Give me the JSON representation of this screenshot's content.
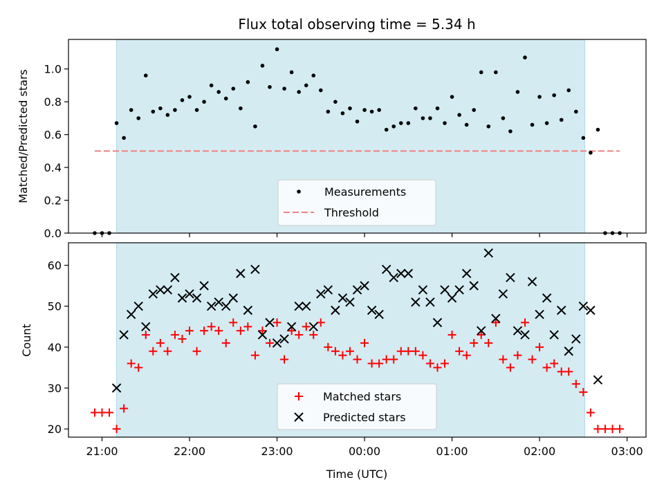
{
  "chart_data": {
    "title": "Flux total observing time = 5.34 h",
    "xlabel": "Time (UTC)",
    "x_ticks": [
      "21:00",
      "22:00",
      "23:00",
      "00:00",
      "01:00",
      "02:00",
      "03:00"
    ],
    "x_range": [
      "20:37",
      "03:13"
    ],
    "shaded_interval": [
      "21:10",
      "02:31"
    ],
    "colors": {
      "shade": "#d4ebf2",
      "matched": "#ff0000",
      "predicted": "#000000",
      "threshold": "#f08080",
      "measurement": "#000000"
    },
    "panels": [
      {
        "type": "scatter",
        "ylabel": "Matched/Predicted stars",
        "ylim": [
          0,
          1.18
        ],
        "y_ticks": [
          "0.0",
          "0.2",
          "0.4",
          "0.6",
          "0.8",
          "1.0"
        ],
        "legend_position": "lower-center",
        "threshold": {
          "name": "Threshold",
          "value": 0.5,
          "x_range": [
            "20:55",
            "02:55"
          ]
        },
        "series": [
          {
            "name": "Measurements",
            "marker": "dot",
            "points": [
              [
                "20:55",
                0.0
              ],
              [
                "21:00",
                0.0
              ],
              [
                "21:05",
                0.0
              ],
              [
                "21:10",
                0.67
              ],
              [
                "21:15",
                0.58
              ],
              [
                "21:20",
                0.75
              ],
              [
                "21:25",
                0.7
              ],
              [
                "21:30",
                0.96
              ],
              [
                "21:35",
                0.74
              ],
              [
                "21:40",
                0.76
              ],
              [
                "21:45",
                0.72
              ],
              [
                "21:50",
                0.75
              ],
              [
                "21:55",
                0.81
              ],
              [
                "22:00",
                0.83
              ],
              [
                "22:05",
                0.75
              ],
              [
                "22:10",
                0.8
              ],
              [
                "22:15",
                0.9
              ],
              [
                "22:20",
                0.86
              ],
              [
                "22:25",
                0.82
              ],
              [
                "22:30",
                0.88
              ],
              [
                "22:35",
                0.76
              ],
              [
                "22:40",
                0.92
              ],
              [
                "22:45",
                0.65
              ],
              [
                "22:50",
                1.02
              ],
              [
                "22:55",
                0.89
              ],
              [
                "23:00",
                1.12
              ],
              [
                "23:05",
                0.88
              ],
              [
                "23:10",
                0.98
              ],
              [
                "23:15",
                0.86
              ],
              [
                "23:20",
                0.9
              ],
              [
                "23:25",
                0.96
              ],
              [
                "23:30",
                0.87
              ],
              [
                "23:35",
                0.74
              ],
              [
                "23:40",
                0.8
              ],
              [
                "23:45",
                0.73
              ],
              [
                "23:50",
                0.76
              ],
              [
                "23:55",
                0.68
              ],
              [
                "00:00",
                0.75
              ],
              [
                "00:05",
                0.74
              ],
              [
                "00:10",
                0.75
              ],
              [
                "00:15",
                0.63
              ],
              [
                "00:20",
                0.65
              ],
              [
                "00:25",
                0.67
              ],
              [
                "00:30",
                0.67
              ],
              [
                "00:35",
                0.76
              ],
              [
                "00:40",
                0.7
              ],
              [
                "00:45",
                0.7
              ],
              [
                "00:50",
                0.76
              ],
              [
                "00:55",
                0.67
              ],
              [
                "01:00",
                0.83
              ],
              [
                "01:05",
                0.72
              ],
              [
                "01:10",
                0.66
              ],
              [
                "01:15",
                0.75
              ],
              [
                "01:20",
                0.98
              ],
              [
                "01:25",
                0.65
              ],
              [
                "01:30",
                0.98
              ],
              [
                "01:35",
                0.7
              ],
              [
                "01:40",
                0.62
              ],
              [
                "01:45",
                0.86
              ],
              [
                "01:50",
                1.07
              ],
              [
                "01:55",
                0.66
              ],
              [
                "02:00",
                0.83
              ],
              [
                "02:05",
                0.67
              ],
              [
                "02:10",
                0.84
              ],
              [
                "02:15",
                0.69
              ],
              [
                "02:20",
                0.87
              ],
              [
                "02:25",
                0.74
              ],
              [
                "02:30",
                0.58
              ],
              [
                "02:35",
                0.49
              ],
              [
                "02:40",
                0.63
              ],
              [
                "02:45",
                0.0
              ],
              [
                "02:50",
                0.0
              ],
              [
                "02:55",
                0.0
              ]
            ]
          }
        ]
      },
      {
        "type": "scatter",
        "ylabel": "Count",
        "ylim": [
          18,
          65.5
        ],
        "y_ticks": [
          "20",
          "30",
          "40",
          "50",
          "60"
        ],
        "legend_position": "lower-center",
        "series": [
          {
            "name": "Matched stars",
            "marker": "plus",
            "points": [
              [
                "20:55",
                24
              ],
              [
                "21:00",
                24
              ],
              [
                "21:05",
                24
              ],
              [
                "21:10",
                20
              ],
              [
                "21:15",
                25
              ],
              [
                "21:20",
                36
              ],
              [
                "21:25",
                35
              ],
              [
                "21:30",
                43
              ],
              [
                "21:35",
                39
              ],
              [
                "21:40",
                41
              ],
              [
                "21:45",
                39
              ],
              [
                "21:50",
                43
              ],
              [
                "21:55",
                42
              ],
              [
                "22:00",
                44
              ],
              [
                "22:05",
                39
              ],
              [
                "22:10",
                44
              ],
              [
                "22:15",
                45
              ],
              [
                "22:20",
                44
              ],
              [
                "22:25",
                41
              ],
              [
                "22:30",
                46
              ],
              [
                "22:35",
                44
              ],
              [
                "22:40",
                45
              ],
              [
                "22:45",
                38
              ],
              [
                "22:50",
                44
              ],
              [
                "22:55",
                41
              ],
              [
                "23:00",
                46
              ],
              [
                "23:05",
                37
              ],
              [
                "23:10",
                44
              ],
              [
                "23:15",
                43
              ],
              [
                "23:20",
                45
              ],
              [
                "23:25",
                43
              ],
              [
                "23:30",
                46
              ],
              [
                "23:35",
                40
              ],
              [
                "23:40",
                39
              ],
              [
                "23:45",
                38
              ],
              [
                "23:50",
                39
              ],
              [
                "23:55",
                37
              ],
              [
                "00:00",
                41
              ],
              [
                "00:05",
                36
              ],
              [
                "00:10",
                36
              ],
              [
                "00:15",
                37
              ],
              [
                "00:20",
                37
              ],
              [
                "00:25",
                39
              ],
              [
                "00:30",
                39
              ],
              [
                "00:35",
                39
              ],
              [
                "00:40",
                38
              ],
              [
                "00:45",
                36
              ],
              [
                "00:50",
                35
              ],
              [
                "00:55",
                36
              ],
              [
                "01:00",
                43
              ],
              [
                "01:05",
                39
              ],
              [
                "01:10",
                38
              ],
              [
                "01:15",
                41
              ],
              [
                "01:20",
                43
              ],
              [
                "01:25",
                41
              ],
              [
                "01:30",
                46
              ],
              [
                "01:35",
                37
              ],
              [
                "01:40",
                35
              ],
              [
                "01:45",
                38
              ],
              [
                "01:50",
                46
              ],
              [
                "01:55",
                37
              ],
              [
                "02:00",
                40
              ],
              [
                "02:05",
                35
              ],
              [
                "02:10",
                36
              ],
              [
                "02:15",
                34
              ],
              [
                "02:20",
                34
              ],
              [
                "02:25",
                31
              ],
              [
                "02:30",
                29
              ],
              [
                "02:35",
                24
              ],
              [
                "02:40",
                20
              ],
              [
                "02:45",
                20
              ],
              [
                "02:50",
                20
              ],
              [
                "02:55",
                20
              ]
            ]
          },
          {
            "name": "Predicted stars",
            "marker": "cross",
            "points": [
              [
                "21:10",
                30
              ],
              [
                "21:15",
                43
              ],
              [
                "21:20",
                48
              ],
              [
                "21:25",
                50
              ],
              [
                "21:30",
                45
              ],
              [
                "21:35",
                53
              ],
              [
                "21:40",
                54
              ],
              [
                "21:45",
                54
              ],
              [
                "21:50",
                57
              ],
              [
                "21:55",
                52
              ],
              [
                "22:00",
                53
              ],
              [
                "22:05",
                52
              ],
              [
                "22:10",
                55
              ],
              [
                "22:15",
                50
              ],
              [
                "22:20",
                51
              ],
              [
                "22:25",
                50
              ],
              [
                "22:30",
                52
              ],
              [
                "22:35",
                58
              ],
              [
                "22:40",
                49
              ],
              [
                "22:45",
                59
              ],
              [
                "22:50",
                43
              ],
              [
                "22:55",
                46
              ],
              [
                "23:00",
                41
              ],
              [
                "23:05",
                42
              ],
              [
                "23:10",
                45
              ],
              [
                "23:15",
                50
              ],
              [
                "23:20",
                50
              ],
              [
                "23:25",
                45
              ],
              [
                "23:30",
                53
              ],
              [
                "23:35",
                54
              ],
              [
                "23:40",
                49
              ],
              [
                "23:45",
                52
              ],
              [
                "23:50",
                51
              ],
              [
                "23:55",
                54
              ],
              [
                "00:00",
                55
              ],
              [
                "00:05",
                49
              ],
              [
                "00:10",
                48
              ],
              [
                "00:15",
                59
              ],
              [
                "00:20",
                57
              ],
              [
                "00:25",
                58
              ],
              [
                "00:30",
                58
              ],
              [
                "00:35",
                51
              ],
              [
                "00:40",
                54
              ],
              [
                "00:45",
                51
              ],
              [
                "00:50",
                46
              ],
              [
                "00:55",
                54
              ],
              [
                "01:00",
                52
              ],
              [
                "01:05",
                54
              ],
              [
                "01:10",
                58
              ],
              [
                "01:15",
                55
              ],
              [
                "01:20",
                44
              ],
              [
                "01:25",
                63
              ],
              [
                "01:30",
                47
              ],
              [
                "01:35",
                53
              ],
              [
                "01:40",
                57
              ],
              [
                "01:45",
                44
              ],
              [
                "01:50",
                43
              ],
              [
                "01:55",
                56
              ],
              [
                "02:00",
                48
              ],
              [
                "02:05",
                52
              ],
              [
                "02:10",
                43
              ],
              [
                "02:15",
                49
              ],
              [
                "02:20",
                39
              ],
              [
                "02:25",
                42
              ],
              [
                "02:30",
                50
              ],
              [
                "02:35",
                49
              ],
              [
                "02:40",
                32
              ]
            ]
          }
        ]
      }
    ]
  }
}
